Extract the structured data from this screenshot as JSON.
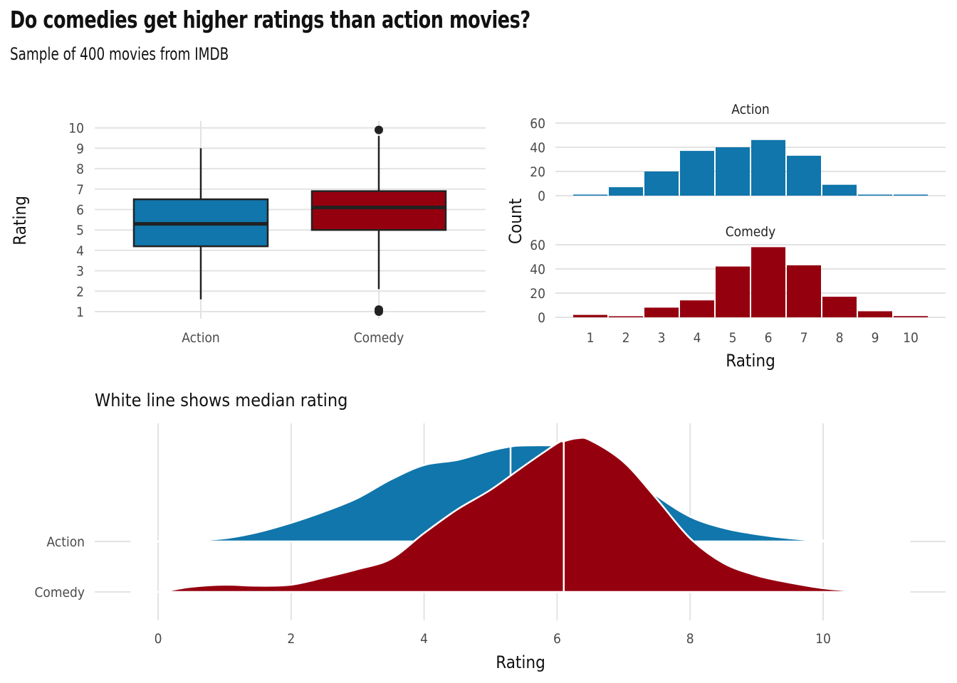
{
  "title": "Do comedies get higher ratings than action movies?",
  "subtitle": "Sample of 400 movies from IMDB",
  "colors": {
    "Action": "#1076ab",
    "Comedy": "#95000f",
    "outline": "#222222",
    "median_line": "#ffffff"
  },
  "chart_data": [
    {
      "type": "box",
      "ylabel": "Rating",
      "ylim": [
        1,
        10
      ],
      "yticks": [
        "1",
        "2",
        "3",
        "4",
        "5",
        "6",
        "7",
        "8",
        "9",
        "10"
      ],
      "categories": [
        "Action",
        "Comedy"
      ],
      "boxes": [
        {
          "name": "Action",
          "whisker_low": 1.6,
          "q1": 4.2,
          "median": 5.3,
          "q3": 6.5,
          "whisker_high": 9.0,
          "outliers": []
        },
        {
          "name": "Comedy",
          "whisker_low": 2.1,
          "q1": 5.0,
          "median": 6.1,
          "q3": 6.9,
          "whisker_high": 9.6,
          "outliers": [
            9.9,
            1.1,
            1.0
          ]
        }
      ]
    },
    {
      "type": "bar",
      "xlabel": "Rating",
      "ylabel": "Count",
      "categories": [
        "1",
        "2",
        "3",
        "4",
        "5",
        "6",
        "7",
        "8",
        "9",
        "10"
      ],
      "ylim": [
        0,
        60
      ],
      "yticks": [
        "0",
        "20",
        "40",
        "60"
      ],
      "series": [
        {
          "name": "Action",
          "values": [
            0.5,
            7,
            20,
            37,
            40,
            46,
            33,
            9,
            0.3,
            0.3
          ]
        },
        {
          "name": "Comedy",
          "values": [
            2,
            0.3,
            8,
            14,
            42,
            58,
            43,
            17,
            5,
            1
          ]
        }
      ]
    },
    {
      "type": "area",
      "subtitle": "White line shows median rating",
      "xlabel": "Rating",
      "xlim": [
        -1,
        11.6
      ],
      "xticks": [
        "0",
        "2",
        "4",
        "6",
        "8",
        "10"
      ],
      "categories": [
        "Action",
        "Comedy"
      ],
      "series": [
        {
          "name": "Action",
          "median": 5.3,
          "x": [
            -0.4,
            0,
            0.5,
            1,
            1.5,
            2,
            2.5,
            3,
            3.5,
            4,
            4.5,
            5,
            5.3,
            5.5,
            6,
            6.3,
            6.5,
            7,
            7.5,
            8,
            8.5,
            9,
            9.5,
            10,
            10.5,
            11,
            11.3
          ],
          "density": [
            0,
            0.001,
            0.005,
            0.015,
            0.045,
            0.09,
            0.145,
            0.21,
            0.3,
            0.37,
            0.395,
            0.44,
            0.46,
            0.465,
            0.465,
            0.46,
            0.44,
            0.34,
            0.22,
            0.12,
            0.065,
            0.035,
            0.015,
            0.004,
            0.001,
            0,
            0
          ]
        },
        {
          "name": "Comedy",
          "median": 6.1,
          "x": [
            -0.4,
            0,
            0.5,
            1,
            1.5,
            2,
            2.5,
            3,
            3.5,
            4,
            4.5,
            5,
            5.5,
            6,
            6.1,
            6.3,
            6.5,
            7,
            7.5,
            8,
            8.5,
            9,
            9.5,
            10,
            10.5,
            11,
            11.3
          ],
          "density": [
            0,
            0,
            0.025,
            0.035,
            0.03,
            0.035,
            0.07,
            0.11,
            0.16,
            0.285,
            0.4,
            0.495,
            0.61,
            0.72,
            0.73,
            0.745,
            0.735,
            0.63,
            0.45,
            0.26,
            0.14,
            0.08,
            0.045,
            0.018,
            0.005,
            0.001,
            0
          ]
        }
      ]
    }
  ]
}
